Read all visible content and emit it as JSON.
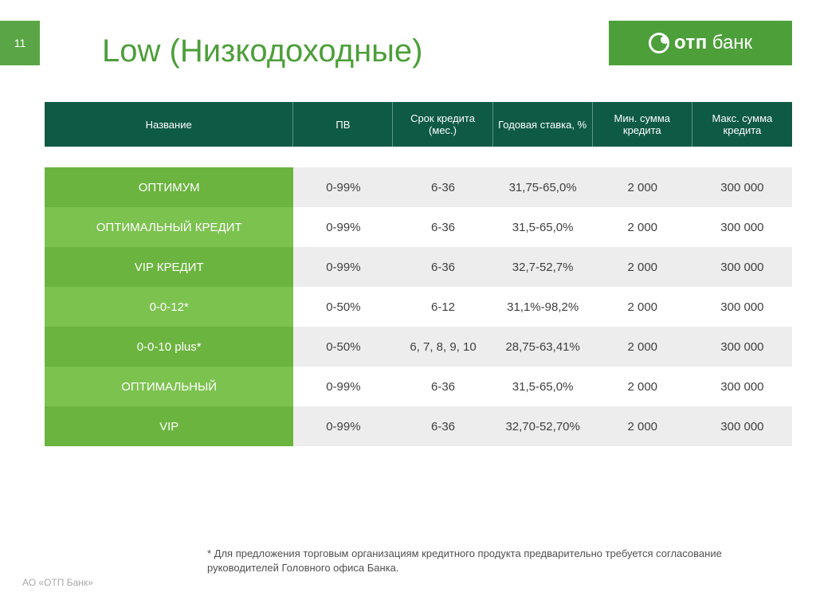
{
  "page_number": "11",
  "title": "Low (Низкодоходные)",
  "logo": {
    "bold": "отп",
    "light": "банк"
  },
  "colors": {
    "accent_green": "#4d9f3a",
    "header_dark_green": "#0e5a45",
    "row_green_odd": "#6bb43f",
    "row_green_even": "#7cc24f",
    "row_gray": "#ededed",
    "page_bg": "#ffffff",
    "text_body": "#404040",
    "text_muted": "#a8a8a8"
  },
  "table": {
    "columns": [
      "Название",
      "ПВ",
      "Срок кредита (мес.)",
      "Годовая ставка, %",
      "Мин. сумма кредита",
      "Макс. сумма кредита"
    ],
    "rows": [
      {
        "name": "ОПТИМУМ",
        "pv": "0-99%",
        "term": "6-36",
        "rate": "31,75-65,0%",
        "min": "2 000",
        "max": "300 000"
      },
      {
        "name": "ОПТИМАЛЬНЫЙ КРЕДИТ",
        "pv": "0-99%",
        "term": "6-36",
        "rate": "31,5-65,0%",
        "min": "2 000",
        "max": "300 000"
      },
      {
        "name": "VIP КРЕДИТ",
        "pv": "0-99%",
        "term": "6-36",
        "rate": "32,7-52,7%",
        "min": "2 000",
        "max": "300 000"
      },
      {
        "name": "0-0-12*",
        "pv": "0-50%",
        "term": "6-12",
        "rate": "31,1%-98,2%",
        "min": "2 000",
        "max": "300 000"
      },
      {
        "name": "0-0-10 plus*",
        "pv": "0-50%",
        "term": "6, 7, 8, 9, 10",
        "rate": "28,75-63,41%",
        "min": "2 000",
        "max": "300 000"
      },
      {
        "name": "ОПТИМАЛЬНЫЙ",
        "pv": "0-99%",
        "term": "6-36",
        "rate": "31,5-65,0%",
        "min": "2 000",
        "max": "300 000"
      },
      {
        "name": "VIP",
        "pv": "0-99%",
        "term": "6-36",
        "rate": "32,70-52,70%",
        "min": "2 000",
        "max": "300 000"
      }
    ]
  },
  "footnote": "* Для предложения торговым организациям кредитного продукта предварительно требуется согласование руководителей Головного офиса Банка.",
  "footer_left": "АО «ОТП Банк»"
}
